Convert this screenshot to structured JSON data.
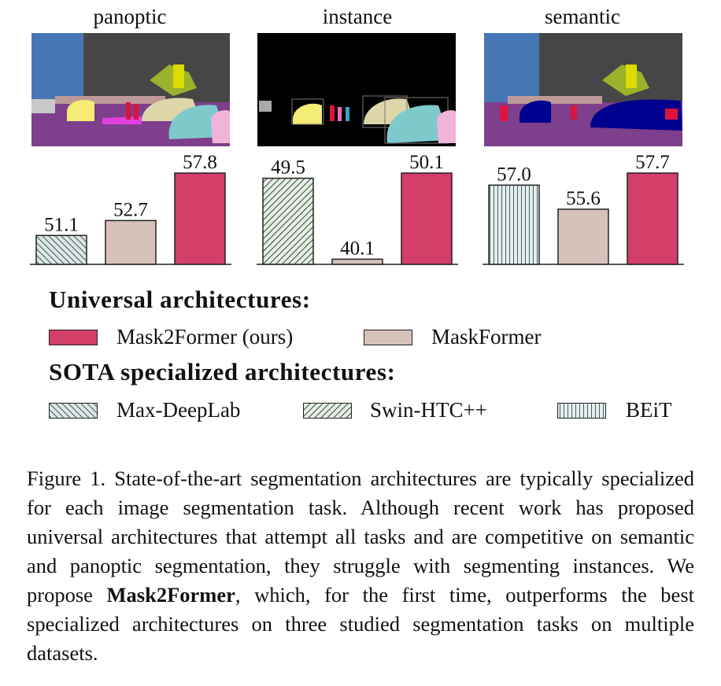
{
  "colors": {
    "mask2former": "#d43f6a",
    "maskformer": "#d6c1bb",
    "max_deeplab": "#dfe6e6",
    "swin_htc": "#e6eee6",
    "beit": "#e4eeee"
  },
  "chart_data": [
    {
      "type": "bar",
      "title": "panoptic",
      "categories": [
        "Max-DeepLab",
        "MaskFormer",
        "Mask2Former (ours)"
      ],
      "values": [
        51.1,
        52.7,
        57.8
      ],
      "labels": [
        "51.1",
        "52.7",
        "57.8"
      ],
      "patterns": [
        "diag-back",
        "solid-beige",
        "solid-red"
      ],
      "ymin": 48.0
    },
    {
      "type": "bar",
      "title": "instance",
      "categories": [
        "Swin-HTC++",
        "MaskFormer",
        "Mask2Former (ours)"
      ],
      "values": [
        49.5,
        40.1,
        50.1
      ],
      "labels": [
        "49.5",
        "40.1",
        "50.1"
      ],
      "patterns": [
        "diag-fwd",
        "solid-beige",
        "solid-red"
      ],
      "ymin": 39.5
    },
    {
      "type": "bar",
      "title": "semantic",
      "categories": [
        "BEiT",
        "MaskFormer",
        "Mask2Former (ours)"
      ],
      "values": [
        57.0,
        55.6,
        57.7
      ],
      "labels": [
        "57.0",
        "55.6",
        "57.7"
      ],
      "patterns": [
        "vertical",
        "solid-beige",
        "solid-red"
      ],
      "ymin": 52.4
    }
  ],
  "legend": {
    "universal_heading": "Universal architectures:",
    "sota_heading": "SOTA specialized architectures:",
    "universal_items": [
      "Mask2Former (ours)",
      "MaskFormer"
    ],
    "sota_items": [
      "Max-DeepLab",
      "Swin-HTC++",
      "BEiT"
    ]
  },
  "caption": {
    "prefix": "Figure 1. State-of-the-art segmentation architectures are typically specialized for each image segmentation task. Although recent work has proposed universal architectures that attempt all tasks and are competitive on semantic and panoptic segmentation, they struggle with segmenting instances. We propose ",
    "bold": "Mask2Former",
    "suffix": ", which, for the first time, outperforms the best specialized architectures on three studied segmentation tasks on multiple datasets."
  }
}
